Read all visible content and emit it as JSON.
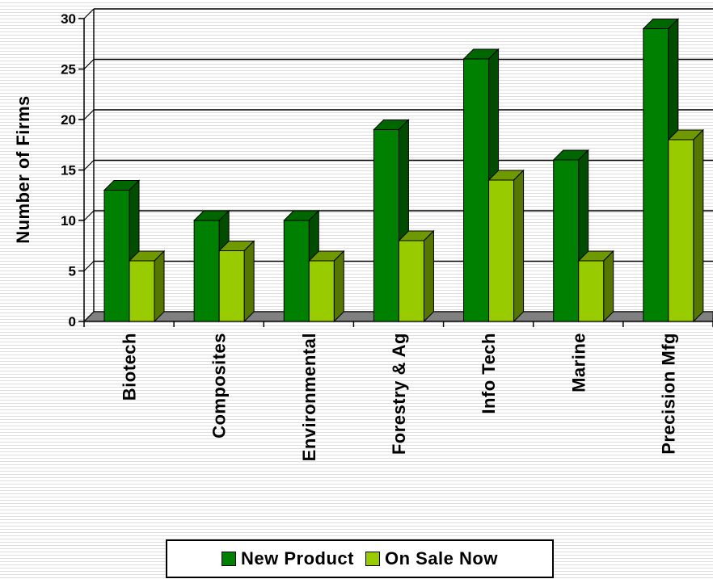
{
  "chart_data": {
    "type": "bar",
    "title": "",
    "xlabel": "",
    "ylabel": "Number of Firms",
    "ylim": [
      0,
      30
    ],
    "yticks": [
      "0",
      "5",
      "10",
      "15",
      "20",
      "25",
      "30"
    ],
    "grid": true,
    "legend_position": "bottom",
    "categories": [
      "Biotech",
      "Composites",
      "Environmental",
      "Forestry & Ag",
      "Info Tech",
      "Marine",
      "Precision Mfg"
    ],
    "series": [
      {
        "name": "New Product",
        "values": [
          13,
          10,
          10,
          19,
          26,
          16,
          29
        ],
        "color": "#008000",
        "top_color": "#006600",
        "side_color": "#004d00"
      },
      {
        "name": "On Sale Now",
        "values": [
          6,
          7,
          6,
          8,
          14,
          6,
          18
        ],
        "color": "#99cc00",
        "top_color": "#6f9900",
        "side_color": "#557700"
      }
    ],
    "floor_color": "#808080"
  }
}
